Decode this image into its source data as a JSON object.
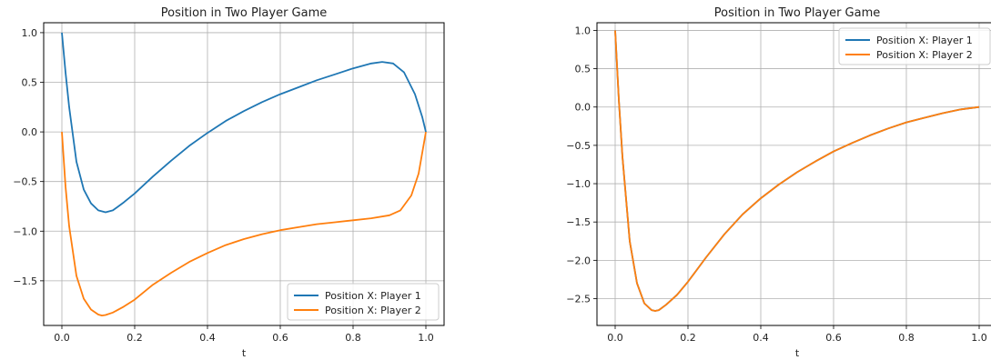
{
  "colors": {
    "player1": "#1f77b4",
    "player2": "#ff7f0e",
    "grid": "#b0b0b0"
  },
  "chart_data": [
    {
      "type": "line",
      "title": "Position in Two Player Game",
      "xlabel": "t",
      "ylabel": "",
      "xlim": [
        -0.05,
        1.05
      ],
      "ylim": [
        -1.95,
        1.1
      ],
      "xticks": [
        0.0,
        0.2,
        0.4,
        0.6,
        0.8,
        1.0
      ],
      "xtick_labels": [
        "0.0",
        "0.2",
        "0.4",
        "0.6",
        "0.8",
        "1.0"
      ],
      "yticks": [
        -1.5,
        -1.0,
        -0.5,
        0.0,
        0.5,
        1.0
      ],
      "ytick_labels": [
        "−1.5",
        "−1.0",
        "−0.5",
        "0.0",
        "0.5",
        "1.0"
      ],
      "grid": true,
      "legend_position": "lower-right",
      "series": [
        {
          "name": "Position X: Player 1",
          "color": "#1f77b4",
          "x": [
            0.0,
            0.01,
            0.02,
            0.04,
            0.06,
            0.08,
            0.1,
            0.12,
            0.14,
            0.17,
            0.2,
            0.25,
            0.3,
            0.35,
            0.4,
            0.45,
            0.5,
            0.55,
            0.6,
            0.65,
            0.7,
            0.75,
            0.8,
            0.85,
            0.88,
            0.91,
            0.94,
            0.97,
            0.99,
            1.0
          ],
          "y": [
            1.0,
            0.6,
            0.25,
            -0.3,
            -0.58,
            -0.72,
            -0.79,
            -0.81,
            -0.79,
            -0.71,
            -0.62,
            -0.45,
            -0.29,
            -0.14,
            -0.01,
            0.11,
            0.21,
            0.3,
            0.38,
            0.45,
            0.52,
            0.58,
            0.64,
            0.69,
            0.705,
            0.69,
            0.6,
            0.38,
            0.15,
            0.0
          ]
        },
        {
          "name": "Position X: Player 2",
          "color": "#ff7f0e",
          "x": [
            0.0,
            0.01,
            0.02,
            0.04,
            0.06,
            0.08,
            0.1,
            0.11,
            0.12,
            0.14,
            0.17,
            0.2,
            0.25,
            0.3,
            0.35,
            0.4,
            0.45,
            0.5,
            0.55,
            0.6,
            0.65,
            0.7,
            0.75,
            0.8,
            0.85,
            0.9,
            0.93,
            0.96,
            0.98,
            1.0
          ],
          "y": [
            0.0,
            -0.55,
            -0.95,
            -1.45,
            -1.68,
            -1.79,
            -1.84,
            -1.85,
            -1.845,
            -1.82,
            -1.76,
            -1.69,
            -1.54,
            -1.42,
            -1.31,
            -1.22,
            -1.14,
            -1.08,
            -1.03,
            -0.99,
            -0.96,
            -0.93,
            -0.91,
            -0.89,
            -0.87,
            -0.84,
            -0.79,
            -0.64,
            -0.42,
            0.0
          ]
        }
      ]
    },
    {
      "type": "line",
      "title": "Position in Two Player Game",
      "xlabel": "t",
      "ylabel": "",
      "xlim": [
        -0.05,
        1.05
      ],
      "ylim": [
        -2.85,
        1.1
      ],
      "xticks": [
        0.0,
        0.2,
        0.4,
        0.6,
        0.8,
        1.0
      ],
      "xtick_labels": [
        "0.0",
        "0.2",
        "0.4",
        "0.6",
        "0.8",
        "1.0"
      ],
      "yticks": [
        -2.5,
        -2.0,
        -1.5,
        -1.0,
        -0.5,
        0.0,
        0.5,
        1.0
      ],
      "ytick_labels": [
        "−2.5",
        "−2.0",
        "−1.5",
        "−1.0",
        "−0.5",
        "0.0",
        "0.5",
        "1.0"
      ],
      "grid": true,
      "legend_position": "upper-right",
      "series": [
        {
          "name": "Position X: Player 1",
          "color": "#1f77b4",
          "x": [
            0.0,
            0.01,
            0.02,
            0.04,
            0.06,
            0.08,
            0.1,
            0.11,
            0.12,
            0.14,
            0.17,
            0.2,
            0.25,
            0.3,
            0.35,
            0.4,
            0.45,
            0.5,
            0.55,
            0.6,
            0.65,
            0.7,
            0.75,
            0.8,
            0.85,
            0.9,
            0.95,
            1.0
          ],
          "y": [
            1.0,
            0.1,
            -0.65,
            -1.75,
            -2.3,
            -2.56,
            -2.65,
            -2.66,
            -2.65,
            -2.58,
            -2.45,
            -2.28,
            -1.96,
            -1.66,
            -1.4,
            -1.19,
            -1.01,
            -0.85,
            -0.71,
            -0.58,
            -0.47,
            -0.37,
            -0.28,
            -0.2,
            -0.14,
            -0.08,
            -0.03,
            0.0
          ]
        },
        {
          "name": "Position X: Player 2",
          "color": "#ff7f0e",
          "x": [
            0.0,
            0.01,
            0.02,
            0.04,
            0.06,
            0.08,
            0.1,
            0.11,
            0.12,
            0.14,
            0.17,
            0.2,
            0.25,
            0.3,
            0.35,
            0.4,
            0.45,
            0.5,
            0.55,
            0.6,
            0.65,
            0.7,
            0.75,
            0.8,
            0.85,
            0.9,
            0.95,
            1.0
          ],
          "y": [
            1.0,
            0.1,
            -0.65,
            -1.75,
            -2.3,
            -2.56,
            -2.65,
            -2.66,
            -2.65,
            -2.58,
            -2.45,
            -2.28,
            -1.96,
            -1.66,
            -1.4,
            -1.19,
            -1.01,
            -0.85,
            -0.71,
            -0.58,
            -0.47,
            -0.37,
            -0.28,
            -0.2,
            -0.14,
            -0.08,
            -0.03,
            0.0
          ]
        }
      ]
    }
  ]
}
